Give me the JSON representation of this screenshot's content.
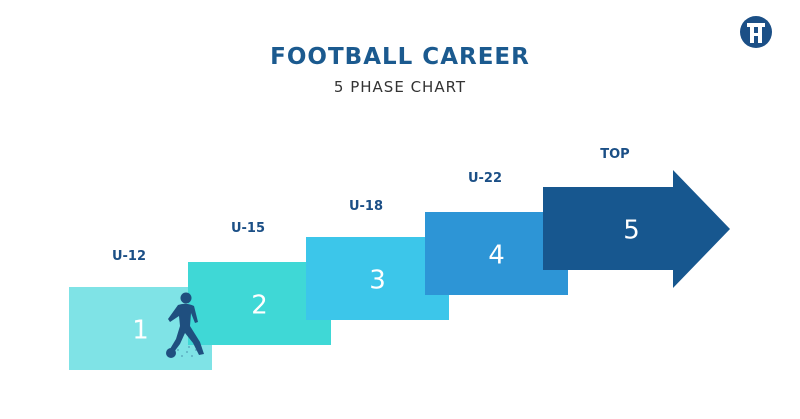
{
  "header": {
    "title": "FOOTBALL CAREER",
    "subtitle": "5 PHASE CHART"
  },
  "logo": {
    "icon": "brand-logo-icon"
  },
  "steps": [
    {
      "number": "1",
      "label": "U-12",
      "color": "#7fe3e6"
    },
    {
      "number": "2",
      "label": "U-15",
      "color": "#3fd8d6"
    },
    {
      "number": "3",
      "label": "U-18",
      "color": "#3cc6ea"
    },
    {
      "number": "4",
      "label": "U-22",
      "color": "#2d95d6"
    },
    {
      "number": "5",
      "label": "TOP",
      "color": "#17578f"
    }
  ],
  "colors": {
    "title": "#1b5a8f",
    "label": "#1b4f86",
    "number": "#ffffff",
    "player": "#1f4f7f"
  },
  "player_icon": "football-player-icon"
}
